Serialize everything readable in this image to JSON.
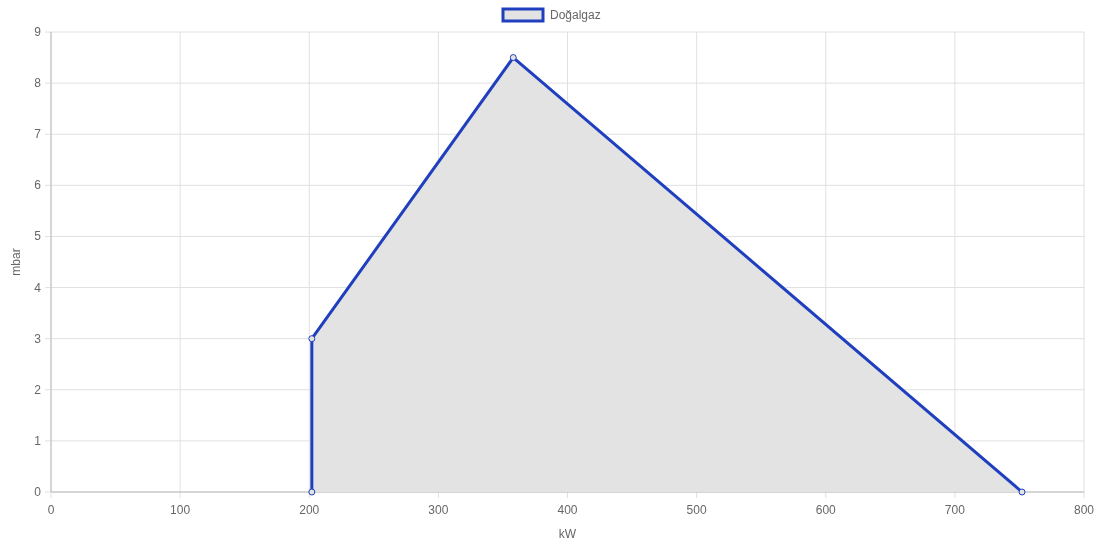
{
  "chart_data": {
    "type": "area",
    "xlabel": "kW",
    "ylabel": "mbar",
    "x": [
      202,
      202,
      358,
      752
    ],
    "series": [
      {
        "name": "Doğalgaz",
        "color": "#1f3fbf",
        "values": [
          0,
          3,
          8.5,
          0
        ]
      }
    ],
    "xlim": [
      0,
      800
    ],
    "xticks": [
      0,
      100,
      200,
      300,
      400,
      500,
      600,
      700,
      800
    ],
    "ylim": [
      0,
      9
    ],
    "yticks": [
      0,
      1,
      2,
      3,
      4,
      5,
      6,
      7,
      8,
      9
    ],
    "grid": true,
    "legend": "top",
    "marker": "circle",
    "line_style": "solid"
  }
}
